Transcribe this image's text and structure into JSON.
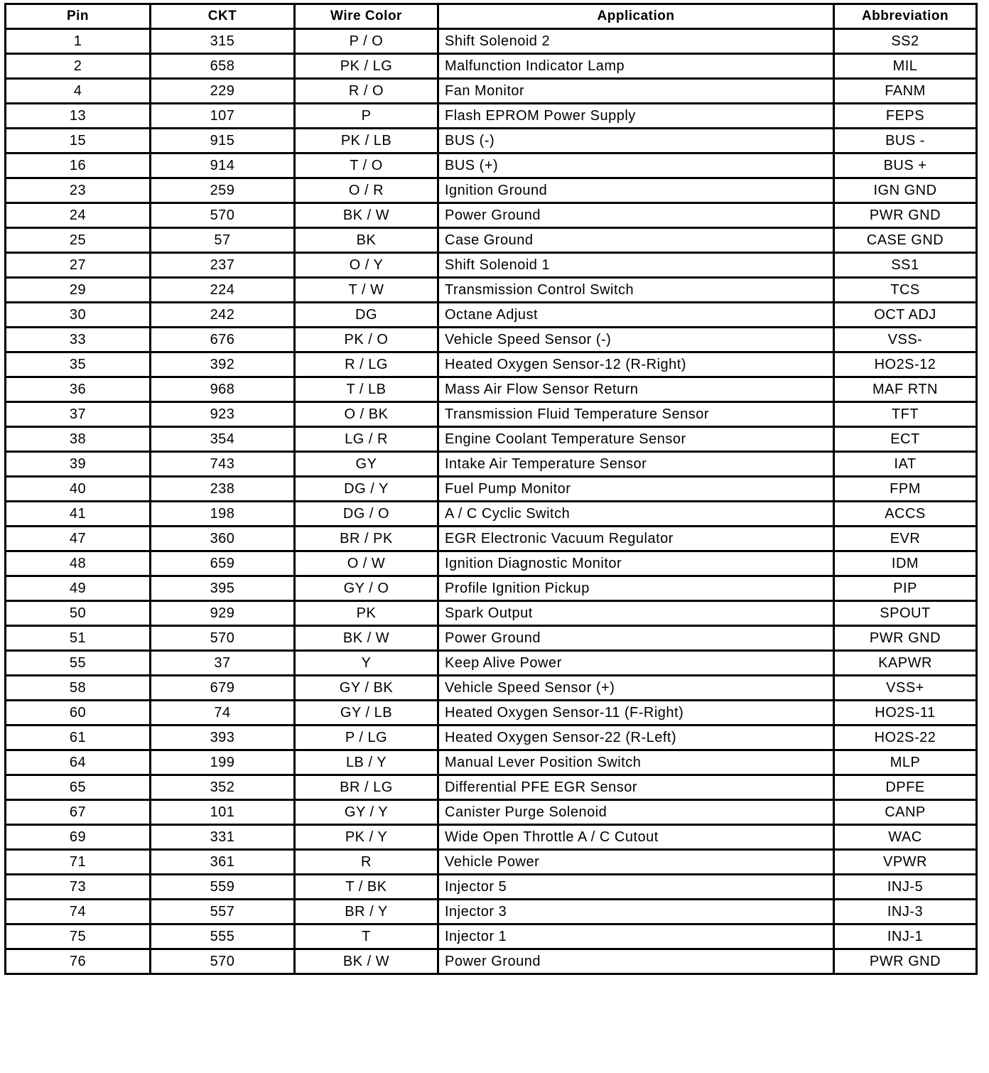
{
  "headers": [
    "Pin",
    "CKT",
    "Wire Color",
    "Application",
    "Abbreviation"
  ],
  "rows": [
    [
      "1",
      "315",
      "P / O",
      "Shift Solenoid 2",
      "SS2"
    ],
    [
      "2",
      "658",
      "PK / LG",
      "Malfunction Indicator Lamp",
      "MIL"
    ],
    [
      "4",
      "229",
      "R / O",
      "Fan Monitor",
      "FANM"
    ],
    [
      "13",
      "107",
      "P",
      "Flash EPROM Power Supply",
      "FEPS"
    ],
    [
      "15",
      "915",
      "PK / LB",
      "BUS (-)",
      "BUS -"
    ],
    [
      "16",
      "914",
      "T / O",
      "BUS (+)",
      "BUS +"
    ],
    [
      "23",
      "259",
      "O / R",
      "Ignition Ground",
      "IGN GND"
    ],
    [
      "24",
      "570",
      "BK / W",
      "Power Ground",
      "PWR GND"
    ],
    [
      "25",
      "57",
      "BK",
      "Case Ground",
      "CASE GND"
    ],
    [
      "27",
      "237",
      "O / Y",
      "Shift Solenoid 1",
      "SS1"
    ],
    [
      "29",
      "224",
      "T / W",
      "Transmission Control Switch",
      "TCS"
    ],
    [
      "30",
      "242",
      "DG",
      "Octane Adjust",
      "OCT ADJ"
    ],
    [
      "33",
      "676",
      "PK / O",
      "Vehicle Speed Sensor (-)",
      "VSS-"
    ],
    [
      "35",
      "392",
      "R / LG",
      "Heated Oxygen Sensor-12 (R-Right)",
      "HO2S-12"
    ],
    [
      "36",
      "968",
      "T / LB",
      "Mass Air Flow Sensor Return",
      "MAF RTN"
    ],
    [
      "37",
      "923",
      "O / BK",
      "Transmission Fluid Temperature Sensor",
      "TFT"
    ],
    [
      "38",
      "354",
      "LG / R",
      "Engine Coolant Temperature Sensor",
      "ECT"
    ],
    [
      "39",
      "743",
      "GY",
      "Intake Air Temperature Sensor",
      "IAT"
    ],
    [
      "40",
      "238",
      "DG / Y",
      "Fuel Pump Monitor",
      "FPM"
    ],
    [
      "41",
      "198",
      "DG / O",
      "A / C Cyclic Switch",
      "ACCS"
    ],
    [
      "47",
      "360",
      "BR / PK",
      "EGR Electronic Vacuum Regulator",
      "EVR"
    ],
    [
      "48",
      "659",
      "O / W",
      "Ignition Diagnostic Monitor",
      "IDM"
    ],
    [
      "49",
      "395",
      "GY / O",
      "Profile Ignition Pickup",
      "PIP"
    ],
    [
      "50",
      "929",
      "PK",
      "Spark Output",
      "SPOUT"
    ],
    [
      "51",
      "570",
      "BK / W",
      "Power Ground",
      "PWR GND"
    ],
    [
      "55",
      "37",
      "Y",
      "Keep Alive Power",
      "KAPWR"
    ],
    [
      "58",
      "679",
      "GY / BK",
      "Vehicle Speed Sensor (+)",
      "VSS+"
    ],
    [
      "60",
      "74",
      "GY / LB",
      "Heated Oxygen Sensor-11 (F-Right)",
      "HO2S-11"
    ],
    [
      "61",
      "393",
      "P / LG",
      "Heated Oxygen Sensor-22 (R-Left)",
      "HO2S-22"
    ],
    [
      "64",
      "199",
      "LB / Y",
      "Manual Lever Position Switch",
      "MLP"
    ],
    [
      "65",
      "352",
      "BR / LG",
      "Differential PFE EGR Sensor",
      "DPFE"
    ],
    [
      "67",
      "101",
      "GY / Y",
      "Canister Purge Solenoid",
      "CANP"
    ],
    [
      "69",
      "331",
      "PK / Y",
      "Wide Open Throttle A / C Cutout",
      "WAC"
    ],
    [
      "71",
      "361",
      "R",
      "Vehicle Power",
      "VPWR"
    ],
    [
      "73",
      "559",
      "T / BK",
      "Injector 5",
      "INJ-5"
    ],
    [
      "74",
      "557",
      "BR / Y",
      "Injector 3",
      "INJ-3"
    ],
    [
      "75",
      "555",
      "T",
      "Injector 1",
      "INJ-1"
    ],
    [
      "76",
      "570",
      "BK / W",
      "Power Ground",
      "PWR GND"
    ]
  ]
}
